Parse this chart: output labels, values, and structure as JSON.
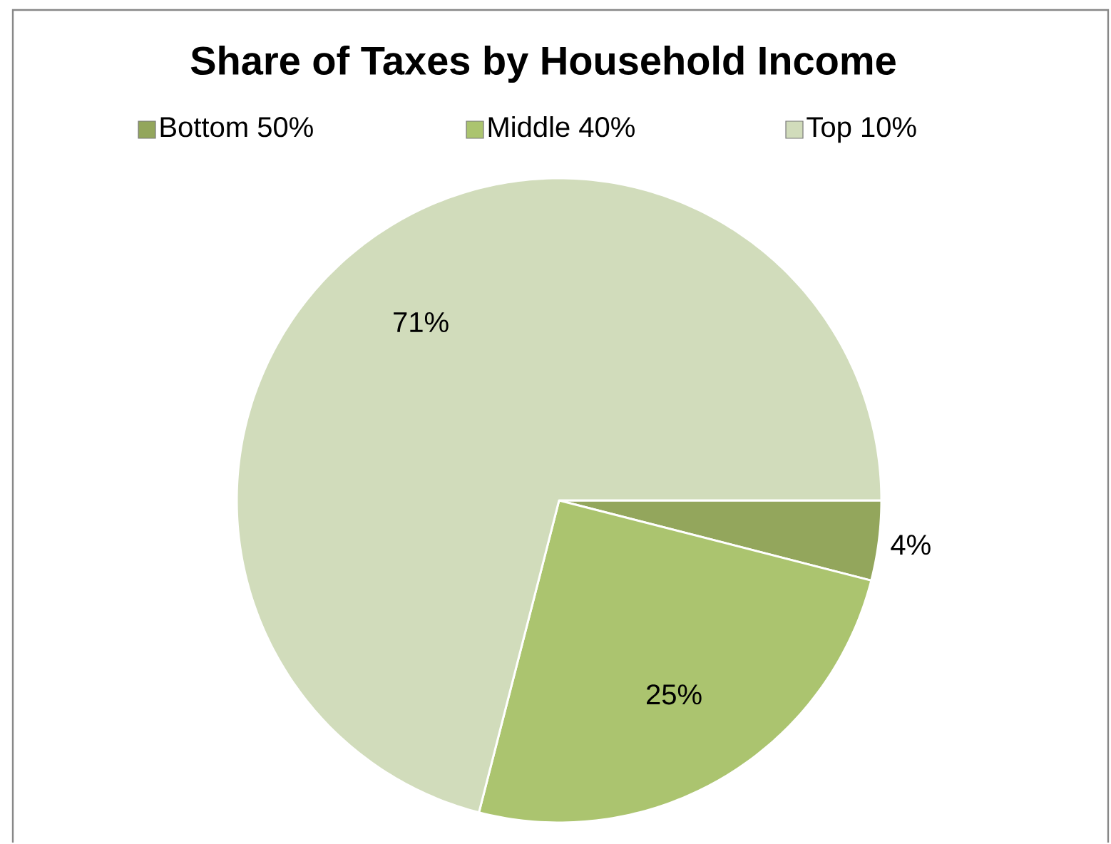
{
  "chart_data": {
    "type": "pie",
    "title": "Share of Taxes by Household Income",
    "categories": [
      "Bottom 50%",
      "Middle 40%",
      "Top 10%"
    ],
    "values": [
      4,
      25,
      71
    ],
    "value_labels": [
      "4%",
      "25%",
      "71%"
    ],
    "colors": [
      "#93a65c",
      "#abc46f",
      "#d1dcbb"
    ],
    "legend": "top"
  }
}
